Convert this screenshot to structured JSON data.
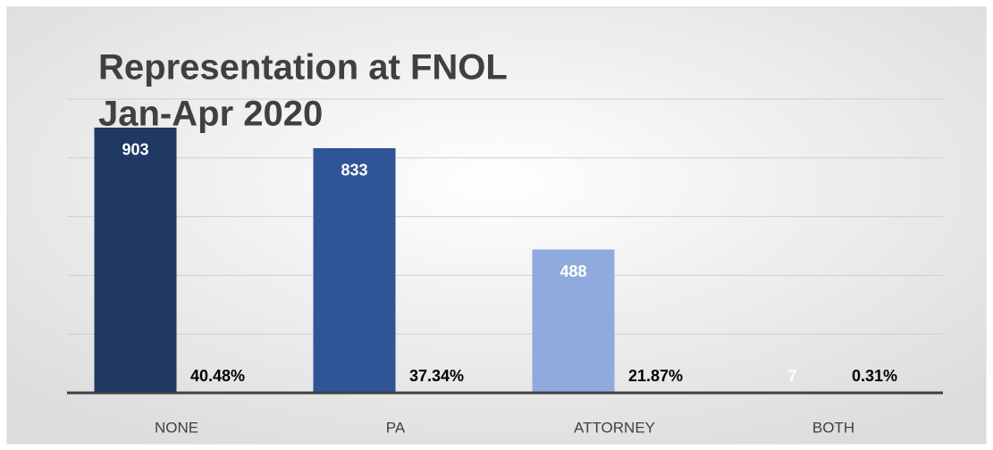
{
  "chart_data": {
    "type": "bar",
    "title": "Representation at FNOL",
    "subtitle": "Jan-Apr 2020",
    "categories": [
      "NONE",
      "PA",
      "ATTORNEY",
      "BOTH"
    ],
    "series": [
      {
        "values": [
          903,
          833,
          488,
          7
        ],
        "colors": [
          "#203864",
          "#2f5597",
          "#8faadc",
          "#dae3f3"
        ]
      },
      {
        "values": [
          40.48,
          37.34,
          21.87,
          0.31
        ],
        "value_labels": [
          "40.48%",
          "37.34%",
          "21.87%",
          "0.31%"
        ]
      }
    ],
    "ylim": [
      0,
      1000
    ],
    "yticks": [
      0,
      200,
      400,
      600,
      800,
      1000
    ],
    "grid": true,
    "tick_labels": false
  }
}
